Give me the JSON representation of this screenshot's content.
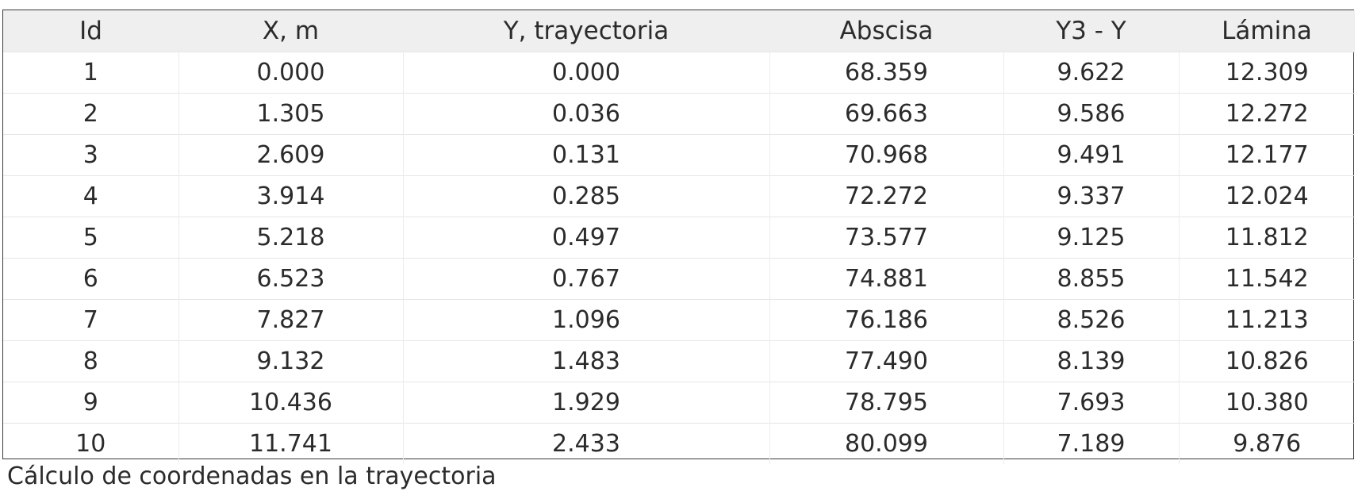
{
  "table": {
    "headers": [
      "Id",
      "X, m",
      "Y, trayectoria",
      "Abscisa",
      "Y3 - Y",
      "Lámina"
    ],
    "rows": [
      [
        "1",
        "0.000",
        "0.000",
        "68.359",
        "9.622",
        "12.309"
      ],
      [
        "2",
        "1.305",
        "0.036",
        "69.663",
        "9.586",
        "12.272"
      ],
      [
        "3",
        "2.609",
        "0.131",
        "70.968",
        "9.491",
        "12.177"
      ],
      [
        "4",
        "3.914",
        "0.285",
        "72.272",
        "9.337",
        "12.024"
      ],
      [
        "5",
        "5.218",
        "0.497",
        "73.577",
        "9.125",
        "11.812"
      ],
      [
        "6",
        "6.523",
        "0.767",
        "74.881",
        "8.855",
        "11.542"
      ],
      [
        "7",
        "7.827",
        "1.096",
        "76.186",
        "8.526",
        "11.213"
      ],
      [
        "8",
        "9.132",
        "1.483",
        "77.490",
        "8.139",
        "10.826"
      ],
      [
        "9",
        "10.436",
        "1.929",
        "78.795",
        "7.693",
        "10.380"
      ],
      [
        "10",
        "11.741",
        "2.433",
        "80.099",
        "7.189",
        "9.876"
      ]
    ]
  },
  "caption": "Cálculo de coordenadas en la trayectoria",
  "colors": {
    "header_background": "#efefef",
    "border": "#3a3a3a",
    "text": "#2b2b2b"
  }
}
